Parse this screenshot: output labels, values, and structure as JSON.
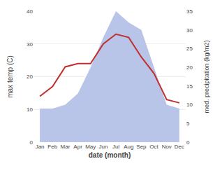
{
  "chart_data": {
    "type": "line",
    "xlabel": "date (month)",
    "ylabel": "max temp (C)",
    "y2label": "med. precipitation (kg/m2)",
    "categories": [
      "Jan",
      "Feb",
      "Mar",
      "Apr",
      "May",
      "Jun",
      "Jul",
      "Aug",
      "Sep",
      "Oct",
      "Nov",
      "Dec"
    ],
    "series": [
      {
        "type": "area",
        "axis": "y2",
        "color": "#b8c4e8",
        "values": [
          9,
          9,
          10,
          13,
          20,
          28,
          35,
          32,
          30,
          20,
          10,
          9
        ]
      },
      {
        "type": "line",
        "axis": "y",
        "color": "#c03030",
        "values": [
          14,
          17,
          23,
          24,
          24,
          30,
          33,
          32,
          26,
          21,
          13,
          12
        ]
      }
    ],
    "ylim": [
      0,
      40
    ],
    "yticks": [
      0,
      10,
      20,
      30,
      40
    ],
    "y2lim": [
      0,
      35
    ],
    "y2ticks": [
      0,
      5,
      10,
      15,
      20,
      25,
      30,
      35
    ],
    "grid": true
  }
}
